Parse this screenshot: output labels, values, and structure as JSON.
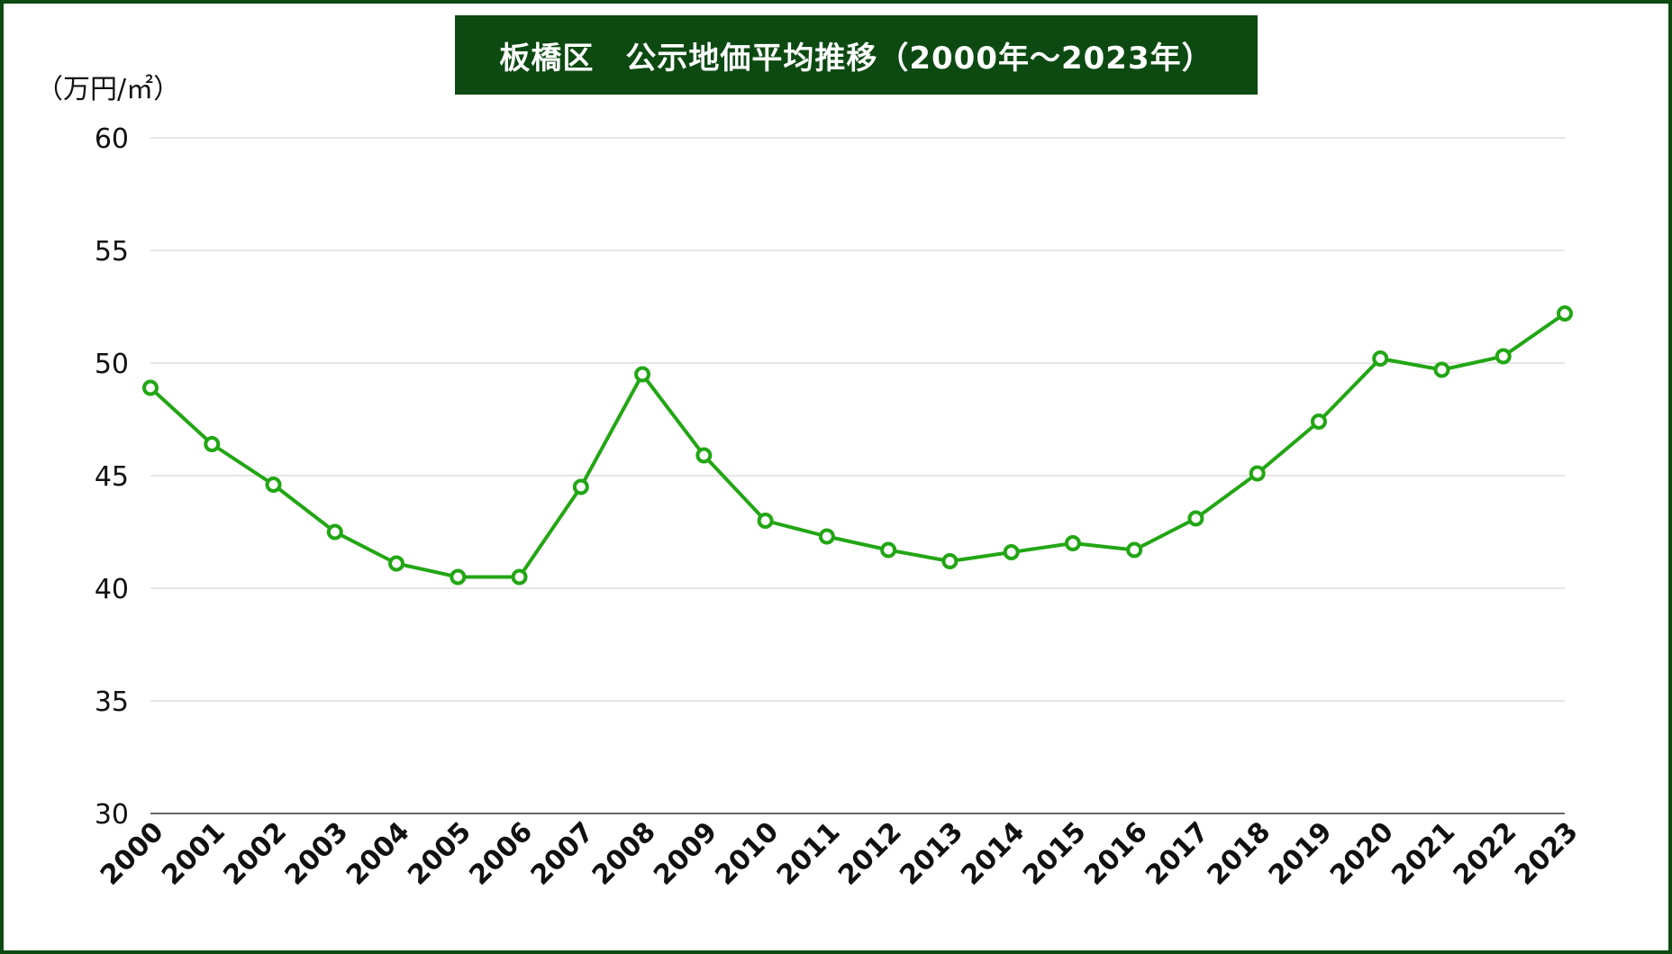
{
  "chart_data": {
    "type": "line",
    "title": "板橋区　公示地価平均推移（2000年〜2023年）",
    "ylabel": "（万円/㎡）",
    "xlabel": "",
    "ylim": [
      30,
      60
    ],
    "yticks": [
      30,
      35,
      40,
      45,
      50,
      55,
      60
    ],
    "grid": true,
    "categories": [
      "2000",
      "2001",
      "2002",
      "2003",
      "2004",
      "2005",
      "2006",
      "2007",
      "2008",
      "2009",
      "2010",
      "2011",
      "2012",
      "2013",
      "2014",
      "2015",
      "2016",
      "2017",
      "2018",
      "2019",
      "2020",
      "2021",
      "2022",
      "2023"
    ],
    "series": [
      {
        "values": [
          48.9,
          46.4,
          44.6,
          42.5,
          41.1,
          40.5,
          40.5,
          44.5,
          49.5,
          45.9,
          43.0,
          42.3,
          41.7,
          41.2,
          41.6,
          42.0,
          41.7,
          43.1,
          45.1,
          47.4,
          50.2,
          49.7,
          50.3,
          52.2
        ],
        "color": "#22a614"
      }
    ]
  },
  "colors": {
    "frame": "#0d4a12",
    "title_bg": "#0d4a12",
    "title_text": "#ffffff",
    "line": "#22a614",
    "grid": "#cccccc"
  }
}
